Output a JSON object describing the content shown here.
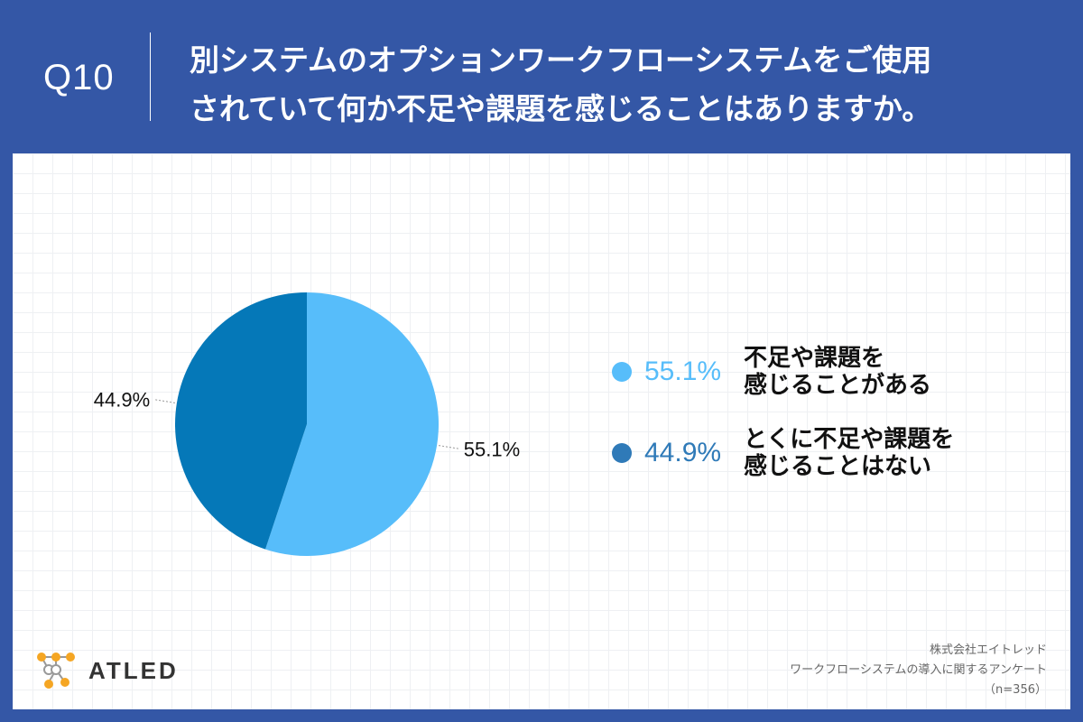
{
  "question": {
    "number": "Q10",
    "title_line1": "別システムのオプションワークフローシステムをご使用",
    "title_line2": "されていて何か不足や課題を感じることはありますか。"
  },
  "chart_data": {
    "type": "pie",
    "title": "別システムのオプションワークフローシステムをご使用されていて何か不足や課題を感じることはありますか。",
    "slices": [
      {
        "label": "不足や課題を感じることがある",
        "label_line1": "不足や課題を",
        "label_line2": "感じることがある",
        "value": 55.1,
        "display": "55.1%",
        "color": "#57bdfa"
      },
      {
        "label": "とくに不足や課題を感じることはない",
        "label_line1": "とくに不足や課題を",
        "label_line2": "感じることはない",
        "value": 44.9,
        "display": "44.9%",
        "color": "#0578b8"
      }
    ],
    "start_angle_deg": 0,
    "direction": "clockwise",
    "legend_position": "right"
  },
  "legend_colors": {
    "first_pct": "#57bdfa",
    "second_pct": "#2f7ab8"
  },
  "logo": {
    "text": "ATLED"
  },
  "source": {
    "company": "株式会社エイトレッド",
    "survey": "ワークフローシステムの導入に関するアンケート",
    "sample": "（n=356）"
  }
}
